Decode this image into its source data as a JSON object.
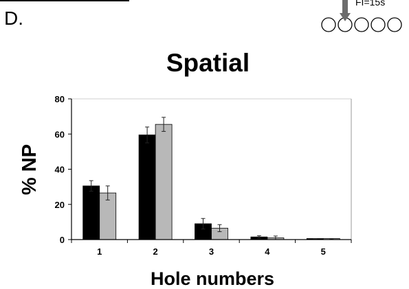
{
  "figure": {
    "panel_letter": "D.",
    "fi_label": "FI=15s",
    "schematic_hole_count": 5,
    "schematic_arrow_hole": 2
  },
  "chart_data": {
    "type": "bar",
    "title": "Spatial",
    "xlabel": "Hole numbers",
    "ylabel": "% NP",
    "categories": [
      "1",
      "2",
      "3",
      "4",
      "5"
    ],
    "ylim": [
      0,
      80
    ],
    "yticks": [
      0,
      20,
      40,
      60,
      80
    ],
    "grid": false,
    "series": [
      {
        "color": "#000000",
        "values": [
          30.5,
          59.5,
          9,
          1.5,
          0.3
        ],
        "errors": [
          3,
          4.5,
          3,
          0.7,
          0.2
        ]
      },
      {
        "color": "#b8b8b8",
        "values": [
          26.5,
          65.5,
          6.5,
          1,
          0.3
        ],
        "errors": [
          4,
          4,
          2,
          1,
          0.2
        ]
      }
    ]
  }
}
